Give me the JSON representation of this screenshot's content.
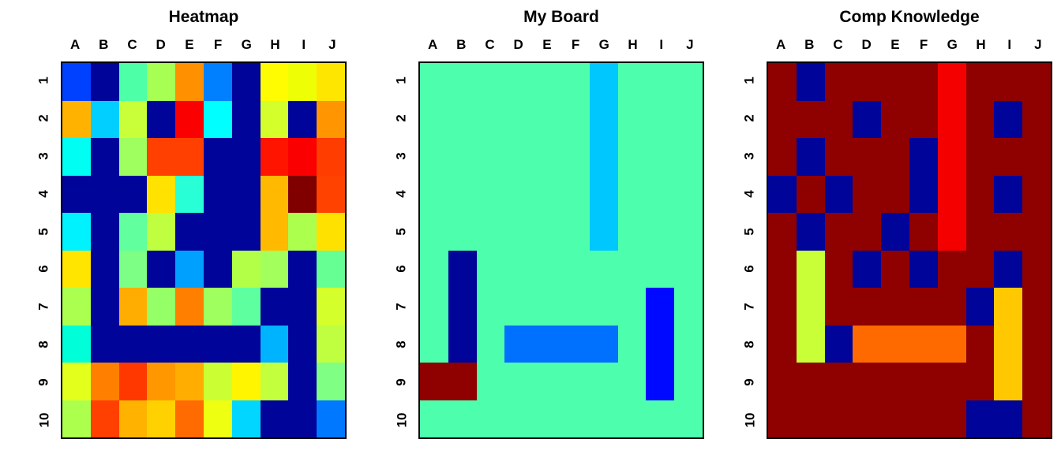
{
  "figure": {
    "background_color": "#FFFFFF",
    "text_color": "#000000"
  },
  "palette": {
    "deep_navy": "#000499",
    "dark_red": "#8F0000",
    "board_background_green": "#4DFFAD",
    "carrier_cyan": "#00C8FF",
    "hit_red": "#F50000"
  },
  "chart_data": [
    {
      "type": "heatmap",
      "title": "Heatmap",
      "x_labels": [
        "A",
        "B",
        "C",
        "D",
        "E",
        "F",
        "G",
        "H",
        "I",
        "J"
      ],
      "y_labels": [
        "1",
        "2",
        "3",
        "4",
        "5",
        "6",
        "7",
        "8",
        "9",
        "10"
      ],
      "grid": "off",
      "cell_colors": [
        [
          "#0040FF",
          "#000499",
          "#4DFFA6",
          "#A6FF52",
          "#FF9100",
          "#0080FF",
          "#000499",
          "#FFFB00",
          "#EEFF05",
          "#FFE600"
        ],
        [
          "#FFB300",
          "#00CFFF",
          "#C8FF38",
          "#000499",
          "#FA0000",
          "#00FFFF",
          "#000499",
          "#D4FF2B",
          "#000499",
          "#FF9500"
        ],
        [
          "#00FFF2",
          "#000499",
          "#9EFF5E",
          "#FF4000",
          "#FF4000",
          "#000499",
          "#000499",
          "#FF1400",
          "#FA0000",
          "#FF3D00"
        ],
        [
          "#000499",
          "#000499",
          "#000499",
          "#FFE200",
          "#29FFD6",
          "#000499",
          "#000499",
          "#FFB900",
          "#800000",
          "#FF4200"
        ],
        [
          "#00F2FF",
          "#000499",
          "#61FF9E",
          "#BFFF40",
          "#000499",
          "#000499",
          "#000499",
          "#FFBA00",
          "#ADFF4D",
          "#FFE100"
        ],
        [
          "#FFE500",
          "#000499",
          "#7DFF85",
          "#000499",
          "#00A0FF",
          "#000499",
          "#B3FF47",
          "#A3FF5C",
          "#000499",
          "#66FF94"
        ],
        [
          "#ABFF4F",
          "#000499",
          "#FFAD00",
          "#94FF66",
          "#FF8000",
          "#9EFF5E",
          "#5EFF9E",
          "#000499",
          "#000499",
          "#D5FF2B"
        ],
        [
          "#00FFD9",
          "#000499",
          "#000499",
          "#000499",
          "#000499",
          "#000499",
          "#000499",
          "#00B3FF",
          "#000499",
          "#BFFF40"
        ],
        [
          "#E3FF1C",
          "#FF8000",
          "#FF3800",
          "#FF9800",
          "#FFAD00",
          "#CCFF33",
          "#FFF500",
          "#C3FF3D",
          "#000499",
          "#80FF85"
        ],
        [
          "#ADFF4D",
          "#FF4000",
          "#FFB300",
          "#FFD100",
          "#FF6B00",
          "#EEFF11",
          "#00D6FF",
          "#000499",
          "#000499",
          "#0078FF"
        ]
      ]
    },
    {
      "type": "heatmap",
      "title": "My Board",
      "x_labels": [
        "A",
        "B",
        "C",
        "D",
        "E",
        "F",
        "G",
        "H",
        "I",
        "J"
      ],
      "y_labels": [
        "1",
        "2",
        "3",
        "4",
        "5",
        "6",
        "7",
        "8",
        "9",
        "10"
      ],
      "grid": "off",
      "cell_colors": [
        [
          "#4DFFAD",
          "#4DFFAD",
          "#4DFFAD",
          "#4DFFAD",
          "#4DFFAD",
          "#4DFFAD",
          "#00C8FF",
          "#4DFFAD",
          "#4DFFAD",
          "#4DFFAD"
        ],
        [
          "#4DFFAD",
          "#4DFFAD",
          "#4DFFAD",
          "#4DFFAD",
          "#4DFFAD",
          "#4DFFAD",
          "#00C8FF",
          "#4DFFAD",
          "#4DFFAD",
          "#4DFFAD"
        ],
        [
          "#4DFFAD",
          "#4DFFAD",
          "#4DFFAD",
          "#4DFFAD",
          "#4DFFAD",
          "#4DFFAD",
          "#00C8FF",
          "#4DFFAD",
          "#4DFFAD",
          "#4DFFAD"
        ],
        [
          "#4DFFAD",
          "#4DFFAD",
          "#4DFFAD",
          "#4DFFAD",
          "#4DFFAD",
          "#4DFFAD",
          "#00C8FF",
          "#4DFFAD",
          "#4DFFAD",
          "#4DFFAD"
        ],
        [
          "#4DFFAD",
          "#4DFFAD",
          "#4DFFAD",
          "#4DFFAD",
          "#4DFFAD",
          "#4DFFAD",
          "#00C8FF",
          "#4DFFAD",
          "#4DFFAD",
          "#4DFFAD"
        ],
        [
          "#4DFFAD",
          "#000499",
          "#4DFFAD",
          "#4DFFAD",
          "#4DFFAD",
          "#4DFFAD",
          "#4DFFAD",
          "#4DFFAD",
          "#4DFFAD",
          "#4DFFAD"
        ],
        [
          "#4DFFAD",
          "#000499",
          "#4DFFAD",
          "#4DFFAD",
          "#4DFFAD",
          "#4DFFAD",
          "#4DFFAD",
          "#4DFFAD",
          "#0009FF",
          "#4DFFAD"
        ],
        [
          "#4DFFAD",
          "#000499",
          "#4DFFAD",
          "#0070FF",
          "#0070FF",
          "#0070FF",
          "#0070FF",
          "#4DFFAD",
          "#0009FF",
          "#4DFFAD"
        ],
        [
          "#8F0000",
          "#8F0000",
          "#4DFFAD",
          "#4DFFAD",
          "#4DFFAD",
          "#4DFFAD",
          "#4DFFAD",
          "#4DFFAD",
          "#0009FF",
          "#4DFFAD"
        ],
        [
          "#4DFFAD",
          "#4DFFAD",
          "#4DFFAD",
          "#4DFFAD",
          "#4DFFAD",
          "#4DFFAD",
          "#4DFFAD",
          "#4DFFAD",
          "#4DFFAD",
          "#4DFFAD"
        ]
      ]
    },
    {
      "type": "heatmap",
      "title": "Comp Knowledge",
      "x_labels": [
        "A",
        "B",
        "C",
        "D",
        "E",
        "F",
        "G",
        "H",
        "I",
        "J"
      ],
      "y_labels": [
        "1",
        "2",
        "3",
        "4",
        "5",
        "6",
        "7",
        "8",
        "9",
        "10"
      ],
      "grid": "off",
      "cell_colors": [
        [
          "#8F0000",
          "#000499",
          "#8F0000",
          "#8F0000",
          "#8F0000",
          "#8F0000",
          "#F50000",
          "#8F0000",
          "#8F0000",
          "#8F0000"
        ],
        [
          "#8F0000",
          "#8F0000",
          "#8F0000",
          "#000499",
          "#8F0000",
          "#8F0000",
          "#F50000",
          "#8F0000",
          "#000499",
          "#8F0000"
        ],
        [
          "#8F0000",
          "#000499",
          "#8F0000",
          "#8F0000",
          "#8F0000",
          "#000499",
          "#F50000",
          "#8F0000",
          "#8F0000",
          "#8F0000"
        ],
        [
          "#000499",
          "#8F0000",
          "#000499",
          "#8F0000",
          "#8F0000",
          "#000499",
          "#F50000",
          "#8F0000",
          "#000499",
          "#8F0000"
        ],
        [
          "#8F0000",
          "#000499",
          "#8F0000",
          "#8F0000",
          "#000499",
          "#8F0000",
          "#F50000",
          "#8F0000",
          "#8F0000",
          "#8F0000"
        ],
        [
          "#8F0000",
          "#C8FF36",
          "#8F0000",
          "#000499",
          "#8F0000",
          "#000499",
          "#8F0000",
          "#8F0000",
          "#000499",
          "#8F0000"
        ],
        [
          "#8F0000",
          "#C8FF36",
          "#8F0000",
          "#8F0000",
          "#8F0000",
          "#8F0000",
          "#8F0000",
          "#000499",
          "#FFC800",
          "#8F0000"
        ],
        [
          "#8F0000",
          "#C8FF36",
          "#000499",
          "#FF6A00",
          "#FF6A00",
          "#FF6A00",
          "#FF6A00",
          "#8F0000",
          "#FFC800",
          "#8F0000"
        ],
        [
          "#8F0000",
          "#8F0000",
          "#8F0000",
          "#8F0000",
          "#8F0000",
          "#8F0000",
          "#8F0000",
          "#8F0000",
          "#FFC800",
          "#8F0000"
        ],
        [
          "#8F0000",
          "#8F0000",
          "#8F0000",
          "#8F0000",
          "#8F0000",
          "#8F0000",
          "#8F0000",
          "#000499",
          "#000499",
          "#8F0000"
        ]
      ]
    }
  ]
}
